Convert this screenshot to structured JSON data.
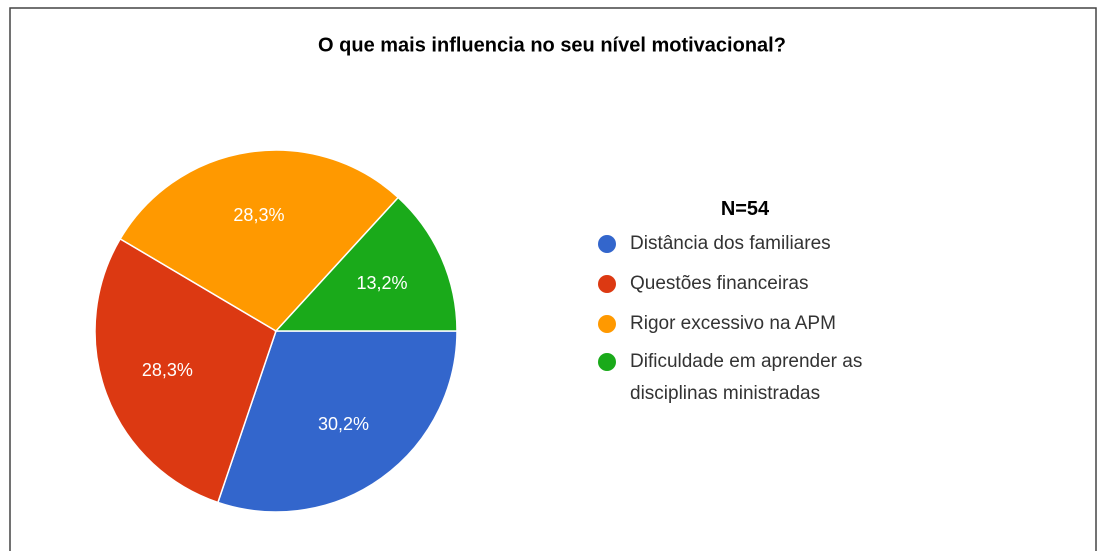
{
  "chart_data": {
    "type": "pie",
    "title": "O que mais influencia no seu nível motivacional?",
    "legend_title": "N=54",
    "series": [
      {
        "name": "Distância dos familiares",
        "color": "#3366cc",
        "values": [
          30.2
        ],
        "value_labels": [
          "30,2%"
        ]
      },
      {
        "name": "Questões financeiras",
        "color": "#dc3912",
        "values": [
          28.3
        ],
        "value_labels": [
          "28,3%"
        ]
      },
      {
        "name": "Rigor excessivo na APM",
        "color": "#ff9900",
        "values": [
          28.3
        ],
        "value_labels": [
          "28,3%"
        ]
      },
      {
        "name": "Dificuldade em aprender as disciplinas ministradas",
        "color": "#1aaa1a",
        "values": [
          13.2
        ],
        "value_labels": [
          "13,2%"
        ]
      }
    ],
    "legend": "right"
  }
}
